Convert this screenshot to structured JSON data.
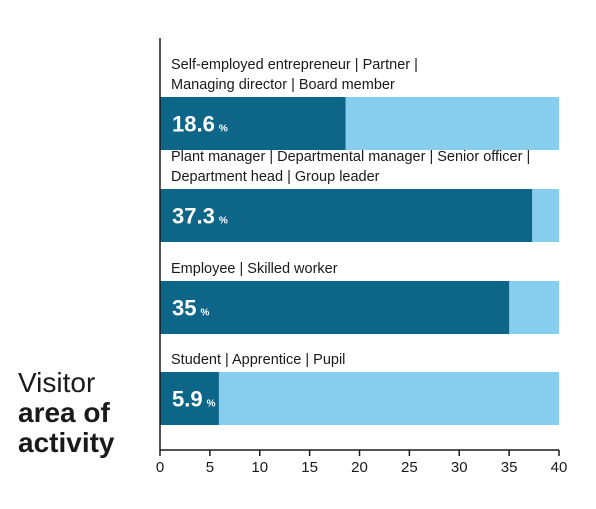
{
  "chart_data": {
    "type": "bar",
    "orientation": "horizontal",
    "title_lines": [
      "Visitor",
      "area of",
      "activity"
    ],
    "categories": [
      [
        "Self-employed entrepreneur  |  Partner  |",
        "Managing director  |  Board member"
      ],
      [
        "Plant manager  |   Departmental manager  |  Senior officer  |",
        "Department head  |  Group leader"
      ],
      [
        "Employee  |  Skilled worker"
      ],
      [
        "Student  |  Apprentice  |  Pupil"
      ]
    ],
    "values": [
      18.6,
      37.3,
      35,
      5.9
    ],
    "value_labels": [
      "18.6",
      "37.3",
      "35",
      "5.9"
    ],
    "unit": "%",
    "xlim": [
      0,
      40
    ],
    "xticks": [
      0,
      5,
      10,
      15,
      20,
      25,
      30,
      35,
      40
    ],
    "grid": false,
    "colors": {
      "value_bar": "#0d6587",
      "background_bar": "#87cdee",
      "axis": "#1a1a1a",
      "text": "#1a1a1a"
    }
  }
}
